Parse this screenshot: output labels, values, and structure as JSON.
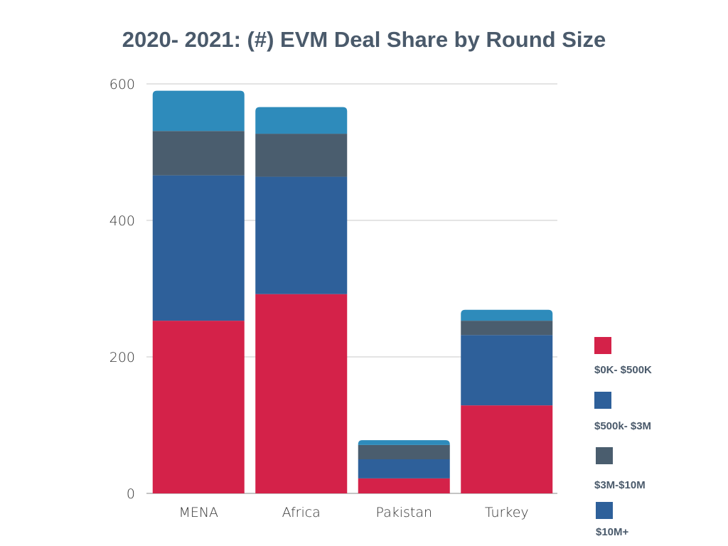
{
  "chart_data": {
    "type": "bar",
    "stacked": true,
    "title": "2020- 2021: (#) EVM Deal Share by Round Size",
    "xlabel": "",
    "ylabel": "",
    "ylim": [
      0,
      600
    ],
    "yticks": [
      "0",
      "200",
      "400",
      "600"
    ],
    "grid": true,
    "legend_position": "right",
    "categories": [
      "MENA",
      "Africa",
      "Pakistan",
      "Turkey"
    ],
    "series": [
      {
        "name": "$0K-  $500K",
        "color": "#d42249",
        "legend_color": "#d42249",
        "values": [
          253,
          292,
          22,
          129
        ]
      },
      {
        "name": "$500k- $3M",
        "color": "#2e609a",
        "legend_color": "#2e609a",
        "values": [
          213,
          172,
          28,
          103
        ]
      },
      {
        "name": "$3M-$10M",
        "color": "#4a5d6e",
        "legend_color": "#4a5d6e",
        "values": [
          65,
          63,
          21,
          21
        ]
      },
      {
        "name": "$10M+",
        "color": "#2e8bbb",
        "legend_color": "#2e609a",
        "values": [
          59,
          39,
          7,
          16
        ]
      }
    ]
  }
}
